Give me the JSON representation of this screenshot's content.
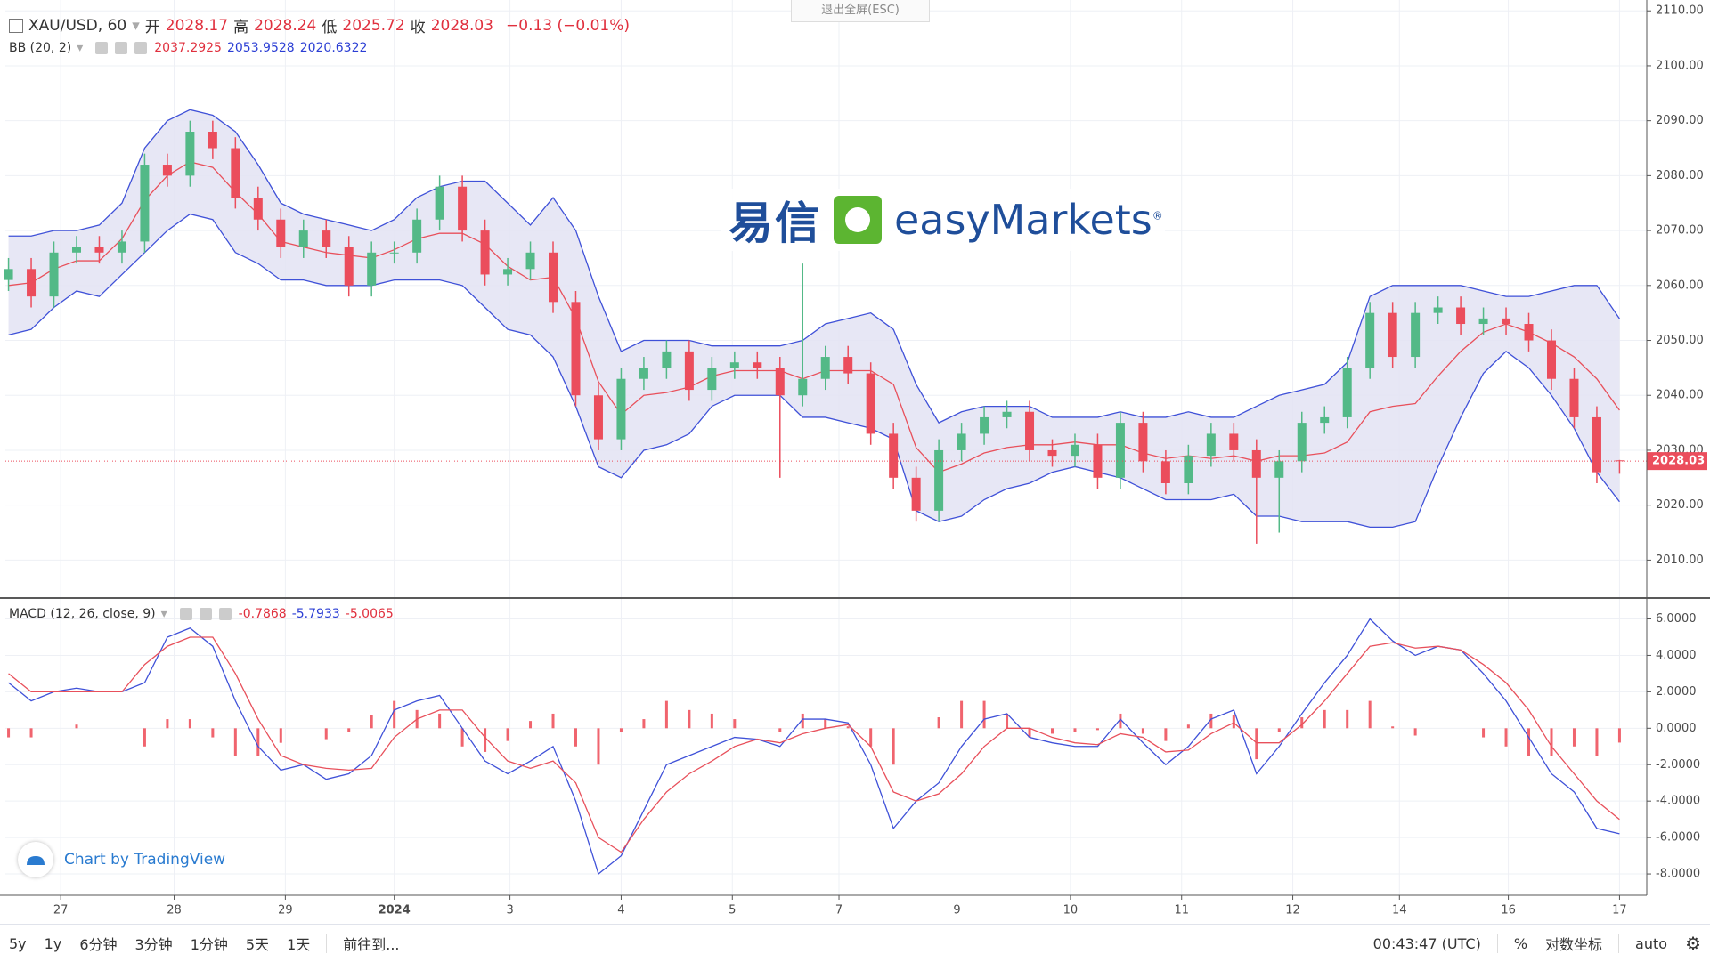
{
  "fullscreen_exit": "退出全屏(ESC)",
  "watermark": {
    "cn": "易信",
    "en": "easyMarkets",
    "reg": "®"
  },
  "attribution": "Chart by TradingView",
  "toolbar": {
    "ranges": [
      "5y",
      "1y",
      "6分钟",
      "3分钟",
      "1分钟",
      "5天",
      "1天"
    ],
    "goto": "前往到...",
    "clock": "00:43:47 (UTC)",
    "percent": "%",
    "log": "对数坐标",
    "auto": "auto"
  },
  "chart_data": [
    {
      "type": "candlestick",
      "title": "XAU/USD, 60",
      "quote_labels": [
        "开",
        "高",
        "低",
        "收"
      ],
      "change": "−0.13 (−0.01%)",
      "up_color": "#53b987",
      "down_color": "#eb4d5c",
      "open": [
        2061,
        2063,
        2058,
        2066,
        2067,
        2066,
        2068,
        2082,
        2080,
        2088,
        2085,
        2076,
        2072,
        2067,
        2070,
        2067,
        2060,
        2066,
        2066,
        2072,
        2078,
        2070,
        2062,
        2063,
        2066,
        2057,
        2040,
        2032,
        2043,
        2045,
        2048,
        2041,
        2045,
        2046,
        2045,
        2040,
        2043,
        2047,
        2044,
        2033,
        2025,
        2019,
        2030,
        2033,
        2036,
        2037,
        2030,
        2029,
        2031,
        2025,
        2035,
        2028,
        2024,
        2029,
        2033,
        2030,
        2025,
        2028,
        2035,
        2036,
        2045,
        2055,
        2047,
        2055,
        2056,
        2053,
        2054,
        2053,
        2050,
        2043,
        2036,
        2028.17
      ],
      "high": [
        2065,
        2065,
        2068,
        2069,
        2069,
        2070,
        2084,
        2084,
        2090,
        2090,
        2087,
        2078,
        2074,
        2072,
        2072,
        2069,
        2068,
        2068,
        2074,
        2080,
        2080,
        2072,
        2065,
        2068,
        2068,
        2059,
        2042,
        2045,
        2047,
        2050,
        2050,
        2047,
        2048,
        2048,
        2047,
        2064,
        2049,
        2049,
        2046,
        2035,
        2027,
        2032,
        2035,
        2038,
        2039,
        2039,
        2032,
        2033,
        2033,
        2037,
        2037,
        2030,
        2031,
        2035,
        2035,
        2032,
        2030,
        2037,
        2038,
        2047,
        2057,
        2057,
        2057,
        2058,
        2058,
        2056,
        2056,
        2055,
        2052,
        2045,
        2038,
        2028.24
      ],
      "low": [
        2059,
        2056,
        2056,
        2064,
        2064,
        2064,
        2066,
        2078,
        2078,
        2083,
        2074,
        2070,
        2065,
        2065,
        2065,
        2058,
        2058,
        2064,
        2064,
        2070,
        2068,
        2060,
        2060,
        2061,
        2055,
        2038,
        2030,
        2030,
        2041,
        2043,
        2039,
        2039,
        2043,
        2043,
        2025,
        2038,
        2041,
        2042,
        2031,
        2023,
        2017,
        2017,
        2028,
        2031,
        2034,
        2028,
        2027,
        2027,
        2023,
        2023,
        2026,
        2022,
        2022,
        2027,
        2028,
        2013,
        2015,
        2026,
        2033,
        2034,
        2043,
        2045,
        2045,
        2053,
        2051,
        2051,
        2051,
        2048,
        2041,
        2034,
        2024,
        2025.72
      ],
      "close": [
        2063,
        2058,
        2066,
        2067,
        2066,
        2068,
        2082,
        2080,
        2088,
        2085,
        2076,
        2072,
        2067,
        2070,
        2067,
        2060,
        2066,
        2066,
        2072,
        2078,
        2070,
        2062,
        2063,
        2066,
        2057,
        2040,
        2032,
        2043,
        2045,
        2048,
        2041,
        2045,
        2046,
        2045,
        2040,
        2043,
        2047,
        2044,
        2033,
        2025,
        2019,
        2030,
        2033,
        2036,
        2037,
        2030,
        2029,
        2031,
        2025,
        2035,
        2028,
        2024,
        2029,
        2033,
        2030,
        2025,
        2028,
        2035,
        2036,
        2045,
        2055,
        2047,
        2055,
        2056,
        2053,
        2054,
        2053,
        2050,
        2043,
        2036,
        2026,
        2028.03
      ],
      "indicator": "BB (20, 2)",
      "band_fill": "#e3e3f3",
      "series": [
        {
          "color": "#e8505b",
          "values": [
            2060,
            2060.5,
            2063,
            2064.5,
            2064.5,
            2068.5,
            2075.5,
            2080,
            2082.5,
            2081.5,
            2077,
            2073,
            2068,
            2067,
            2066,
            2065.5,
            2065,
            2066.5,
            2068.5,
            2069.5,
            2069.5,
            2067.5,
            2063.5,
            2061,
            2061.5,
            2054,
            2042.5,
            2036.5,
            2040,
            2040.5,
            2041.5,
            2043.5,
            2044.5,
            2044.5,
            2044.5,
            2043,
            2044.5,
            2044.5,
            2044.5,
            2042,
            2030.5,
            2026,
            2027.5,
            2029.5,
            2030.5,
            2031,
            2031,
            2031.5,
            2031,
            2031,
            2029.5,
            2028.5,
            2029,
            2028.5,
            2029,
            2028,
            2029,
            2029,
            2029.5,
            2031.5,
            2037,
            2038,
            2038.5,
            2043.5,
            2048,
            2051.5,
            2053,
            2051.5,
            2049.5,
            2047,
            2043,
            2037.2925
          ]
        },
        {
          "color": "#3f51d8",
          "values": [
            2069,
            2069,
            2070,
            2070,
            2071,
            2075,
            2085,
            2090,
            2092,
            2091,
            2088,
            2082,
            2075,
            2073,
            2072,
            2071,
            2070,
            2072,
            2076,
            2078,
            2079,
            2079,
            2075,
            2071,
            2076,
            2070,
            2058,
            2048,
            2050,
            2050,
            2050,
            2049,
            2049,
            2049,
            2049,
            2050,
            2053,
            2054,
            2055,
            2052,
            2042,
            2035,
            2037,
            2038,
            2038,
            2038,
            2036,
            2036,
            2036,
            2037,
            2036,
            2036,
            2037,
            2036,
            2036,
            2038,
            2040,
            2041,
            2042,
            2046,
            2058,
            2060,
            2060,
            2060,
            2060,
            2059,
            2058,
            2058,
            2059,
            2060,
            2060,
            2053.9528
          ]
        },
        {
          "color": "#3f51d8",
          "values": [
            2051,
            2052,
            2056,
            2059,
            2058,
            2062,
            2066,
            2070,
            2073,
            2072,
            2066,
            2064,
            2061,
            2061,
            2060,
            2060,
            2060,
            2061,
            2061,
            2061,
            2060,
            2056,
            2052,
            2051,
            2047,
            2038,
            2027,
            2025,
            2030,
            2031,
            2033,
            2038,
            2040,
            2040,
            2040,
            2036,
            2036,
            2035,
            2034,
            2032,
            2019,
            2017,
            2018,
            2021,
            2023,
            2024,
            2026,
            2027,
            2026,
            2025,
            2023,
            2021,
            2021,
            2021,
            2022,
            2018,
            2018,
            2017,
            2017,
            2017,
            2016,
            2016,
            2017,
            2027,
            2036,
            2044,
            2048,
            2045,
            2040,
            2034,
            2026,
            2020.6322
          ]
        }
      ],
      "ylim": [
        2003.26,
        2111.98
      ],
      "yticks": [
        {
          "value": 2010,
          "label": "2010.00"
        },
        {
          "value": 2020,
          "label": "2020.00"
        },
        {
          "value": 2030,
          "label": "2030.00"
        },
        {
          "value": 2040,
          "label": "2040.00"
        },
        {
          "value": 2050,
          "label": "2050.00"
        },
        {
          "value": 2060,
          "label": "2060.00"
        },
        {
          "value": 2070,
          "label": "2070.00"
        },
        {
          "value": 2080,
          "label": "2080.00"
        },
        {
          "value": 2090,
          "label": "2090.00"
        },
        {
          "value": 2100,
          "label": "2100.00"
        },
        {
          "value": 2110,
          "label": "2110.00"
        }
      ],
      "grid": true
    },
    {
      "type": "macd",
      "title": "MACD (12, 26, close, 9)",
      "histogram": {
        "color": "#f0646e",
        "values": [
          -0.5,
          -0.5,
          0,
          0.2,
          0,
          0,
          -1,
          0.5,
          0.5,
          -0.5,
          -1.5,
          -1.5,
          -0.8,
          0,
          -0.6,
          -0.2,
          0.7,
          1.5,
          1,
          0.8,
          -1,
          -1.3,
          -0.7,
          0.4,
          0.8,
          -1,
          -2,
          -0.2,
          0.5,
          1.5,
          1,
          0.8,
          0.5,
          0,
          -0.2,
          0.8,
          0.5,
          0.1,
          -1,
          -2,
          0,
          0.6,
          1.5,
          1.5,
          0.8,
          -0.5,
          -0.3,
          -0.2,
          -0.1,
          0.8,
          -0.3,
          -0.7,
          0.2,
          0.8,
          0.7,
          -1.7,
          -0.2,
          0.6,
          1,
          1,
          1.5,
          0.1,
          -0.4,
          0,
          0,
          -0.5,
          -1,
          -1.5,
          -1.5,
          -1,
          -1.5,
          -0.7868
        ]
      },
      "series": [
        {
          "color": "#3f51d8",
          "values": [
            2.5,
            1.5,
            2,
            2.2,
            2,
            2,
            2.5,
            5,
            5.5,
            4.5,
            1.5,
            -1,
            -2.3,
            -2,
            -2.8,
            -2.5,
            -1.5,
            1,
            1.5,
            1.8,
            0,
            -1.8,
            -2.5,
            -1.8,
            -1,
            -4,
            -8,
            -7,
            -4.5,
            -2,
            -1.5,
            -1,
            -0.5,
            -0.6,
            -1,
            0.5,
            0.5,
            0.3,
            -2,
            -5.5,
            -4,
            -3,
            -1,
            0.5,
            0.8,
            -0.5,
            -0.8,
            -1,
            -1,
            0.5,
            -0.8,
            -2,
            -1,
            0.5,
            1,
            -2.5,
            -1,
            0.8,
            2.5,
            4,
            6,
            4.8,
            4,
            4.5,
            4.3,
            3,
            1.5,
            -0.5,
            -2.5,
            -3.5,
            -5.5,
            -5.7933
          ]
        },
        {
          "color": "#e8505b",
          "values": [
            3,
            2,
            2,
            2,
            2,
            2,
            3.5,
            4.5,
            5,
            5,
            3,
            0.5,
            -1.5,
            -2,
            -2.2,
            -2.3,
            -2.2,
            -0.5,
            0.5,
            1,
            1,
            -0.5,
            -1.8,
            -2.2,
            -1.8,
            -3,
            -6,
            -6.8,
            -5,
            -3.5,
            -2.5,
            -1.8,
            -1,
            -0.6,
            -0.8,
            -0.3,
            0,
            0.2,
            -1,
            -3.5,
            -4,
            -3.6,
            -2.5,
            -1,
            0,
            0,
            -0.5,
            -0.8,
            -0.9,
            -0.3,
            -0.5,
            -1.3,
            -1.2,
            -0.3,
            0.3,
            -0.8,
            -0.8,
            0.2,
            1.5,
            3,
            4.5,
            4.7,
            4.4,
            4.5,
            4.3,
            3.5,
            2.5,
            1,
            -1,
            -2.5,
            -4,
            -5.0065
          ]
        }
      ],
      "ylim": [
        -9.17,
        7.1
      ],
      "yticks": [
        {
          "value": -8,
          "label": "-8.0000"
        },
        {
          "value": -6,
          "label": "-6.0000"
        },
        {
          "value": -4,
          "label": "-4.0000"
        },
        {
          "value": -2,
          "label": "-2.0000"
        },
        {
          "value": 0,
          "label": "0.0000"
        },
        {
          "value": 2,
          "label": "2.0000"
        },
        {
          "value": 4,
          "label": "4.0000"
        },
        {
          "value": 6,
          "label": "6.0000"
        }
      ],
      "xlim": [
        -0.14,
        72.2
      ],
      "xticks": [
        {
          "value": 2.3,
          "label": "27"
        },
        {
          "value": 7.3,
          "label": "28"
        },
        {
          "value": 12.2,
          "label": "29"
        },
        {
          "value": 17,
          "label": "2024"
        },
        {
          "value": 22.1,
          "label": "3"
        },
        {
          "value": 27,
          "label": "4"
        },
        {
          "value": 31.9,
          "label": "5"
        },
        {
          "value": 36.6,
          "label": "7"
        },
        {
          "value": 41.8,
          "label": "9"
        },
        {
          "value": 46.8,
          "label": "10"
        },
        {
          "value": 51.7,
          "label": "11"
        },
        {
          "value": 56.6,
          "label": "12"
        },
        {
          "value": 61.3,
          "label": "14"
        },
        {
          "value": 66.1,
          "label": "16"
        },
        {
          "value": 71,
          "label": "17"
        }
      ],
      "grid": true
    }
  ]
}
